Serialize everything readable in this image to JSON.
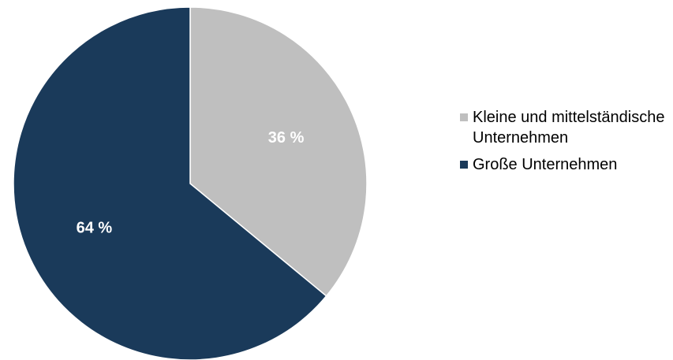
{
  "chart_data": {
    "type": "pie",
    "title": "",
    "legend_position": "right",
    "slices": [
      {
        "name": "Kleine und mittelständische Unternehmen",
        "value": 36,
        "label": "36 %",
        "color": "#bfbfbf"
      },
      {
        "name": "Große Unternehmen",
        "value": 64,
        "label": "64 %",
        "color": "#1a3a5a"
      }
    ]
  }
}
